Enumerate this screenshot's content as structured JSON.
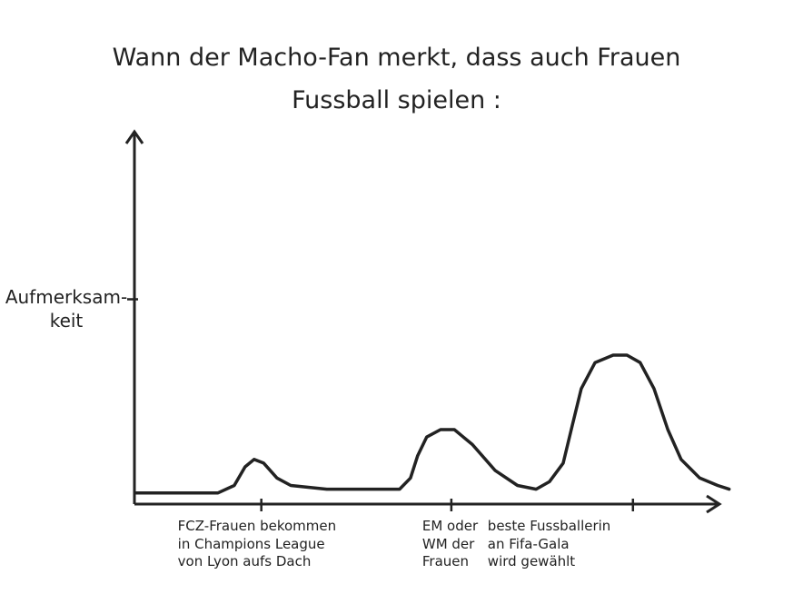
{
  "chart_data": {
    "type": "line",
    "title": "Wann der Macho-Fan merkt, dass auch Frauen\nFussball spielen :",
    "color": "#222222",
    "xlim": [
      0,
      100
    ],
    "ylim": [
      0,
      10
    ],
    "xticks": [
      {
        "value": 21.1,
        "label": "FCZ-Frauen bekommen\nin Champions League\nvon Lyon aufs Dach"
      },
      {
        "value": 52.7,
        "label": "EM oder\nWM der\nFrauen"
      },
      {
        "value": 82.9,
        "label": "beste Fussballerin\nan Fifa-Gala\nwird gewählt"
      }
    ],
    "yticks": [
      {
        "value": 5.5,
        "label": "Aufmerksam-\nkeit"
      }
    ],
    "x": [
      0.3,
      7.9,
      13.9,
      16.6,
      18.4,
      19.9,
      21.5,
      23.7,
      26.0,
      32.0,
      38.1,
      44.1,
      45.9,
      47.1,
      48.6,
      50.9,
      53.2,
      56.2,
      60.0,
      63.7,
      66.8,
      69.0,
      71.3,
      72.8,
      74.3,
      76.6,
      79.6,
      81.9,
      84.1,
      86.4,
      88.7,
      90.9,
      94.0,
      97.0,
      98.9
    ],
    "values": [
      0.3,
      0.3,
      0.3,
      0.5,
      1.0,
      1.2,
      1.1,
      0.7,
      0.5,
      0.4,
      0.4,
      0.4,
      0.7,
      1.3,
      1.8,
      2.0,
      2.0,
      1.6,
      0.9,
      0.5,
      0.4,
      0.6,
      1.1,
      2.1,
      3.1,
      3.8,
      4.0,
      4.0,
      3.8,
      3.1,
      2.0,
      1.2,
      0.7,
      0.5,
      0.4
    ]
  }
}
